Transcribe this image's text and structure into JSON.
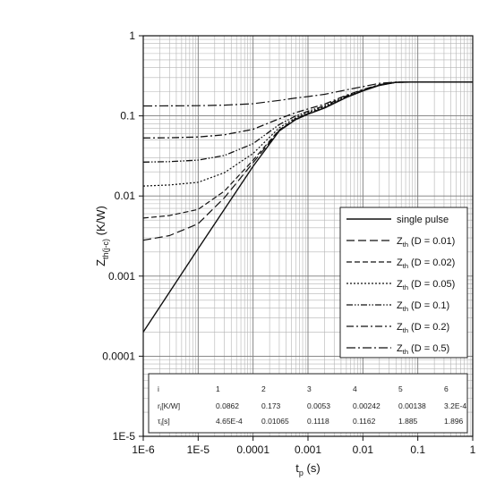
{
  "chart_data": {
    "type": "line",
    "x_scale": "log",
    "y_scale": "log",
    "xlim": [
      1e-06,
      1
    ],
    "ylim": [
      1e-05,
      1
    ],
    "grid": true,
    "legend_position": "bottom-right",
    "xlabel": "t",
    "xlabel_sub": "p",
    "xlabel_unit": " (s)",
    "ylabel": "Z",
    "ylabel_sub": "th(j-c)",
    "ylabel_unit": " (K/W)",
    "x_ticks": [
      {
        "value": 1e-06,
        "label": "1E-6"
      },
      {
        "value": 1e-05,
        "label": "1E-5"
      },
      {
        "value": 0.0001,
        "label": "0.0001"
      },
      {
        "value": 0.001,
        "label": "0.001"
      },
      {
        "value": 0.01,
        "label": "0.01"
      },
      {
        "value": 0.1,
        "label": "0.1"
      },
      {
        "value": 1,
        "label": "1"
      }
    ],
    "y_ticks": [
      {
        "value": 1e-05,
        "label": "1E-5"
      },
      {
        "value": 0.0001,
        "label": "0.0001"
      },
      {
        "value": 0.001,
        "label": "0.001"
      },
      {
        "value": 0.01,
        "label": "0.01"
      },
      {
        "value": 0.1,
        "label": "0.1"
      },
      {
        "value": 1,
        "label": "1"
      }
    ],
    "series": [
      {
        "name": "single pulse",
        "dash": "",
        "width": 1.4,
        "x": [
          1e-06,
          1e-05,
          0.0001,
          0.0003,
          0.0006,
          0.001,
          0.002,
          0.005,
          0.01,
          0.02,
          0.04,
          0.1,
          1
        ],
        "y": [
          0.0002,
          0.0022,
          0.0235,
          0.065,
          0.09,
          0.105,
          0.125,
          0.17,
          0.205,
          0.24,
          0.262,
          0.265,
          0.265
        ]
      },
      {
        "name": "Z",
        "sub": "th",
        "suffix": " (D = 0.01)",
        "dash": "9,4",
        "width": 1.2,
        "x": [
          1e-06,
          3e-06,
          1e-05,
          3e-05,
          0.0001,
          0.0003,
          0.0006,
          0.001,
          0.002,
          0.005,
          0.01,
          0.02,
          0.04,
          0.1,
          1
        ],
        "y": [
          0.0028,
          0.0032,
          0.0045,
          0.0095,
          0.026,
          0.066,
          0.091,
          0.106,
          0.126,
          0.171,
          0.206,
          0.241,
          0.262,
          0.265,
          0.265
        ]
      },
      {
        "name": "Z",
        "sub": "th",
        "suffix": " (D = 0.02)",
        "dash": "6,3",
        "width": 1.2,
        "x": [
          1e-06,
          3e-06,
          1e-05,
          3e-05,
          0.0001,
          0.0003,
          0.0006,
          0.001,
          0.002,
          0.005,
          0.01,
          0.02,
          0.04,
          0.1,
          1
        ],
        "y": [
          0.0053,
          0.0057,
          0.0068,
          0.0115,
          0.028,
          0.067,
          0.092,
          0.107,
          0.127,
          0.172,
          0.207,
          0.242,
          0.262,
          0.265,
          0.265
        ]
      },
      {
        "name": "Z",
        "sub": "th",
        "suffix": " (D = 0.05)",
        "dash": "2,2",
        "width": 1.2,
        "x": [
          1e-06,
          3e-06,
          1e-05,
          3e-05,
          0.0001,
          0.0003,
          0.0006,
          0.001,
          0.002,
          0.005,
          0.01,
          0.02,
          0.04,
          0.1,
          1
        ],
        "y": [
          0.0133,
          0.0137,
          0.0148,
          0.0195,
          0.034,
          0.071,
          0.095,
          0.11,
          0.13,
          0.174,
          0.208,
          0.243,
          0.263,
          0.265,
          0.265
        ]
      },
      {
        "name": "Z",
        "sub": "th",
        "suffix": " (D = 0.1)",
        "dash": "7,2,1.5,2,1.5,2",
        "width": 1.3,
        "x": [
          1e-06,
          3e-06,
          1e-05,
          3e-05,
          0.0001,
          0.0003,
          0.0006,
          0.001,
          0.002,
          0.005,
          0.01,
          0.02,
          0.04,
          0.1,
          1
        ],
        "y": [
          0.0265,
          0.0268,
          0.028,
          0.032,
          0.045,
          0.078,
          0.1,
          0.114,
          0.134,
          0.177,
          0.21,
          0.244,
          0.263,
          0.265,
          0.265
        ]
      },
      {
        "name": "Z",
        "sub": "th",
        "suffix": " (D = 0.2)",
        "dash": "8,3,2,3",
        "width": 1.3,
        "x": [
          1e-06,
          3e-06,
          1e-05,
          3e-05,
          0.0001,
          0.0003,
          0.0006,
          0.001,
          0.002,
          0.005,
          0.01,
          0.02,
          0.04,
          0.1,
          1
        ],
        "y": [
          0.053,
          0.0533,
          0.0545,
          0.058,
          0.068,
          0.092,
          0.11,
          0.122,
          0.14,
          0.181,
          0.213,
          0.246,
          0.263,
          0.265,
          0.265
        ]
      },
      {
        "name": "Z",
        "sub": "th",
        "suffix": " (D = 0.5)",
        "dash": "10,3,2,3",
        "width": 1.2,
        "x": [
          1e-06,
          3e-06,
          1e-05,
          3e-05,
          0.0001,
          0.0003,
          0.0006,
          0.001,
          0.002,
          0.005,
          0.01,
          0.02,
          0.04,
          0.1,
          1
        ],
        "y": [
          0.133,
          0.1333,
          0.134,
          0.136,
          0.142,
          0.156,
          0.167,
          0.174,
          0.186,
          0.211,
          0.232,
          0.255,
          0.264,
          0.265,
          0.265
        ]
      }
    ],
    "table": {
      "rows": [
        [
          "i",
          "1",
          "2",
          "3",
          "4",
          "5",
          "6"
        ],
        [
          "r",
          "0.0862",
          "0.173",
          "0.0053",
          "0.00242",
          "0.00138",
          "3.2E-4"
        ],
        [
          "τ",
          "4.65E-4",
          "0.01065",
          "0.1118",
          "0.1162",
          "1.885",
          "1.896"
        ]
      ],
      "row_label_subs": [
        "",
        "i",
        "i"
      ],
      "row_label_units": [
        "",
        "[K/W]",
        "[s]"
      ]
    }
  }
}
